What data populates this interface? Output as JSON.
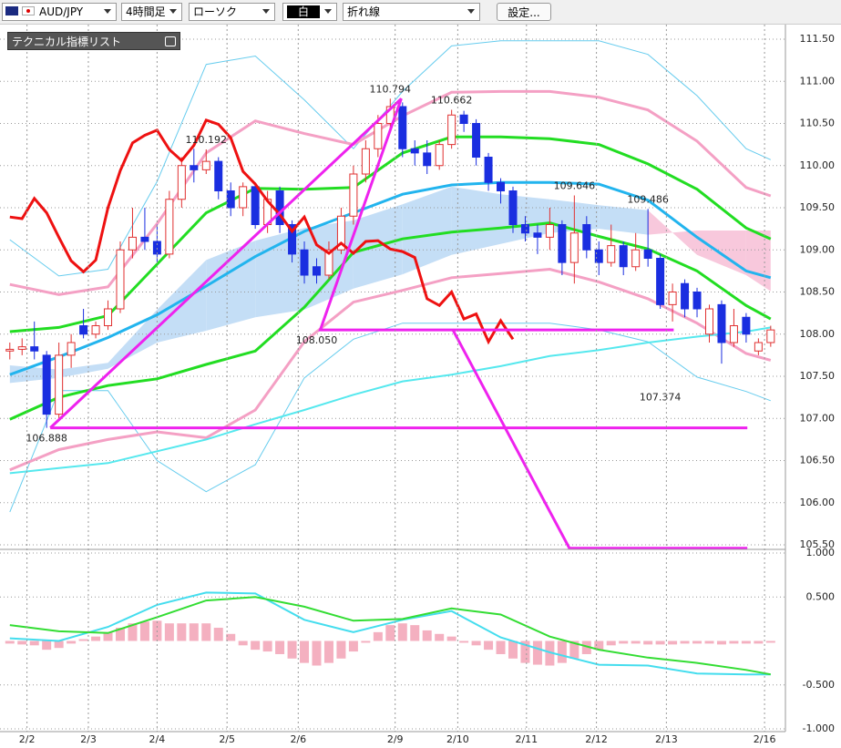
{
  "toolbar": {
    "symbol": "AUD/JPY",
    "timeframe": "4時間足",
    "chart_style": "ローソク",
    "color": "白",
    "line_type": "折れ線",
    "settings_button": "設定..."
  },
  "indicator_panel": {
    "title": "テクニカル指標リスト"
  },
  "chart_data": [
    {
      "type": "candlestick",
      "xlim": [
        -0.8,
        63.2
      ],
      "ylim": [
        105.5,
        111.5
      ],
      "yticks": [
        {
          "value": 111.5,
          "label": "111.50"
        },
        {
          "value": 111,
          "label": "111.00"
        },
        {
          "value": 110.5,
          "label": "110.50"
        },
        {
          "value": 110,
          "label": "110.00"
        },
        {
          "value": 109.5,
          "label": "109.50"
        },
        {
          "value": 109,
          "label": "109.00"
        },
        {
          "value": 108.5,
          "label": "108.50"
        },
        {
          "value": 108,
          "label": "108.00"
        },
        {
          "value": 107.5,
          "label": "107.50"
        },
        {
          "value": 107,
          "label": "107.00"
        },
        {
          "value": 106.5,
          "label": "106.50"
        },
        {
          "value": 106,
          "label": "106.00"
        },
        {
          "value": 105.5,
          "label": "105.50"
        }
      ],
      "grid": true,
      "up_color": "#e03030",
      "down_color": "#1a2ee0",
      "candles": {
        "open": [
          107.8,
          107.82,
          107.85,
          107.75,
          107.05,
          107.75,
          108.1,
          108.0,
          108.1,
          108.3,
          109.0,
          109.15,
          109.1,
          108.95,
          109.6,
          110.0,
          109.95,
          110.05,
          109.7,
          109.5,
          109.75,
          109.3,
          109.7,
          109.3,
          109.0,
          108.8,
          108.7,
          109.0,
          109.4,
          109.9,
          110.2,
          110.5,
          110.7,
          110.2,
          110.15,
          110.0,
          110.25,
          110.6,
          110.5,
          110.1,
          109.8,
          109.7,
          109.3,
          109.2,
          109.15,
          109.3,
          108.85,
          109.3,
          109.0,
          108.85,
          109.05,
          108.8,
          109.0,
          108.9,
          108.35,
          108.6,
          108.5,
          108.0,
          108.35,
          107.9,
          108.2,
          107.8,
          107.9
        ],
        "high": [
          107.9,
          107.95,
          108.15,
          107.8,
          107.9,
          108.0,
          108.3,
          108.15,
          108.4,
          109.1,
          109.5,
          109.5,
          109.3,
          109.7,
          110.1,
          110.2,
          110.192,
          110.1,
          109.8,
          109.8,
          109.8,
          109.7,
          109.75,
          109.35,
          109.1,
          108.9,
          109.1,
          109.5,
          110.0,
          110.3,
          110.6,
          110.794,
          110.75,
          110.3,
          110.3,
          110.3,
          110.662,
          110.65,
          110.55,
          110.15,
          109.85,
          109.75,
          109.4,
          109.3,
          109.5,
          109.35,
          109.646,
          109.4,
          109.1,
          109.3,
          109.1,
          109.2,
          109.486,
          108.95,
          108.6,
          108.65,
          108.55,
          108.35,
          108.4,
          108.3,
          108.25,
          107.95,
          108.1
        ],
        "low": [
          107.7,
          107.75,
          107.7,
          106.888,
          107.0,
          107.6,
          107.95,
          107.95,
          108.05,
          108.25,
          108.9,
          109.0,
          108.85,
          108.9,
          109.5,
          109.8,
          109.9,
          109.6,
          109.4,
          109.4,
          109.25,
          109.2,
          109.2,
          108.85,
          108.6,
          108.6,
          108.65,
          108.95,
          109.3,
          109.8,
          110.1,
          110.4,
          110.1,
          110.0,
          109.9,
          109.95,
          110.2,
          110.4,
          110.0,
          109.7,
          109.55,
          109.2,
          109.1,
          108.95,
          109.0,
          108.7,
          108.6,
          108.9,
          108.7,
          108.8,
          108.7,
          108.75,
          108.8,
          108.3,
          108.15,
          108.2,
          108.2,
          107.9,
          107.65,
          107.85,
          107.9,
          107.75,
          107.85
        ],
        "close": [
          107.82,
          107.85,
          107.8,
          107.05,
          107.75,
          107.9,
          108.0,
          108.1,
          108.3,
          109.0,
          109.15,
          109.1,
          108.95,
          109.6,
          110.0,
          109.95,
          110.05,
          109.7,
          109.5,
          109.75,
          109.3,
          109.6,
          109.3,
          108.95,
          108.7,
          108.7,
          109.0,
          109.4,
          109.9,
          110.2,
          110.5,
          110.7,
          110.2,
          110.15,
          110.0,
          110.25,
          110.6,
          110.5,
          110.1,
          109.8,
          109.7,
          109.3,
          109.2,
          109.15,
          109.3,
          108.85,
          109.2,
          109.0,
          108.85,
          109.05,
          108.8,
          109.0,
          108.9,
          108.35,
          108.5,
          108.3,
          108.3,
          108.3,
          107.9,
          108.1,
          108.0,
          107.9,
          108.05
        ]
      },
      "cloud": {
        "up_color": "#c4def6",
        "down_color": "#f8c8dc",
        "span_a": [
          107.63,
          107.58,
          107.66,
          108.29,
          108.88,
          109.11,
          109.26,
          109.35,
          109.54,
          109.75,
          109.66,
          109.6,
          109.53,
          109.47,
          108.94,
          108.7,
          108.51
        ],
        "span_b": [
          107.42,
          107.48,
          107.59,
          107.9,
          108.04,
          108.2,
          108.29,
          108.54,
          108.71,
          108.94,
          109.07,
          109.2,
          109.25,
          109.18,
          109.23,
          109.23,
          109.23
        ]
      },
      "indicators": {
        "x": [
          0,
          4,
          8,
          12,
          16,
          20,
          24,
          28,
          32,
          36,
          40,
          44,
          48,
          52,
          56,
          60,
          62
        ],
        "series": [
          {
            "color": "#66ccee",
            "line_width": 1,
            "values": [
              109.12,
              108.69,
              108.77,
              109.81,
              111.2,
              111.3,
              110.78,
              110.2,
              110.88,
              111.42,
              111.48,
              111.48,
              111.48,
              111.32,
              110.83,
              110.2,
              110.07
            ]
          },
          {
            "color": "#66ccee",
            "line_width": 1,
            "values": [
              105.89,
              107.33,
              107.33,
              106.5,
              106.13,
              106.45,
              107.48,
              107.94,
              108.13,
              108.13,
              108.13,
              108.13,
              108.05,
              107.91,
              107.49,
              107.32,
              107.21
            ]
          },
          {
            "color": "#f4a0c4",
            "line_width": 3,
            "values": [
              108.59,
              108.47,
              108.56,
              109.31,
              110.15,
              110.53,
              110.38,
              110.25,
              110.59,
              110.87,
              110.88,
              110.88,
              110.81,
              110.66,
              110.29,
              109.74,
              109.64
            ]
          },
          {
            "color": "#f4a0c4",
            "line_width": 3,
            "values": [
              106.39,
              106.63,
              106.75,
              106.84,
              106.77,
              107.1,
              107.91,
              108.38,
              108.52,
              108.67,
              108.72,
              108.77,
              108.62,
              108.42,
              108.13,
              107.77,
              107.69
            ]
          },
          {
            "color": "#55e8ee",
            "line_width": 2,
            "values": [
              106.35,
              106.41,
              106.47,
              106.61,
              106.75,
              106.93,
              107.1,
              107.28,
              107.44,
              107.52,
              107.62,
              107.74,
              107.81,
              107.9,
              107.97,
              108.03,
              108.08
            ]
          },
          {
            "color": "#22dd22",
            "line_width": 3,
            "values": [
              108.03,
              108.08,
              108.22,
              108.83,
              109.44,
              109.73,
              109.72,
              109.74,
              110.15,
              110.34,
              110.34,
              110.32,
              110.25,
              110.02,
              109.72,
              109.26,
              109.13
            ]
          },
          {
            "color": "#22dd22",
            "line_width": 3,
            "values": [
              106.99,
              107.25,
              107.39,
              107.47,
              107.64,
              107.8,
              108.32,
              108.97,
              109.13,
              109.21,
              109.26,
              109.32,
              109.16,
              109.01,
              108.75,
              108.34,
              108.18
            ]
          },
          {
            "color": "#22b4ee",
            "line_width": 3,
            "values": [
              107.52,
              107.73,
              107.96,
              108.23,
              108.57,
              108.92,
              109.22,
              109.44,
              109.66,
              109.77,
              109.8,
              109.8,
              109.78,
              109.59,
              109.15,
              108.75,
              108.67
            ]
          }
        ]
      },
      "lagging_line": {
        "color": "#ee1111",
        "x": [
          0,
          1,
          2,
          3,
          4,
          5,
          6,
          7,
          8,
          9,
          10,
          11,
          12,
          13,
          14,
          15,
          16,
          17,
          18,
          19,
          20,
          21,
          22,
          23,
          24,
          25,
          26,
          27,
          28,
          29,
          30,
          31,
          32,
          33,
          34,
          35,
          36,
          37,
          38,
          39,
          40,
          41
        ],
        "values": [
          109.39,
          109.37,
          109.61,
          109.44,
          109.15,
          108.87,
          108.74,
          108.88,
          109.5,
          109.94,
          110.27,
          110.36,
          110.42,
          110.19,
          110.06,
          110.24,
          110.54,
          110.49,
          110.33,
          109.93,
          109.78,
          109.58,
          109.42,
          109.22,
          109.39,
          109.06,
          108.96,
          109.08,
          108.96,
          109.1,
          109.11,
          109.01,
          108.98,
          108.91,
          108.42,
          108.34,
          108.5,
          108.18,
          108.24,
          107.91,
          108.16,
          107.94
        ]
      },
      "drawing_color": "#ee22ee",
      "drawings": [
        {
          "x": [
            3.3,
            31.9,
            25.3,
            54.1
          ],
          "values": [
            106.888,
            110.794,
            108.05,
            108.05
          ]
        },
        {
          "x": [
            3.3,
            60.1
          ],
          "values": [
            106.888,
            106.888
          ]
        },
        {
          "x": [
            36.1,
            45.6,
            60.1
          ],
          "values": [
            108.05,
            105.46,
            105.46
          ]
        }
      ],
      "annotations": {
        "x": [
          16,
          31,
          36,
          46,
          52,
          53,
          25,
          3
        ],
        "values": [
          110.192,
          110.794,
          110.662,
          109.646,
          109.486,
          107.374,
          108.05,
          106.888
        ],
        "value_labels": [
          "110.192",
          "110.794",
          "110.662",
          "109.646",
          "109.486",
          "107.374",
          "108.050",
          "106.888"
        ]
      }
    },
    {
      "type": "macd",
      "xlim": [
        -0.8,
        63.2
      ],
      "ylim": [
        -1,
        1
      ],
      "yticks": [
        {
          "value": 1,
          "label": "1.000"
        },
        {
          "value": 0.5,
          "label": "0.500"
        },
        {
          "value": -0.5,
          "label": "-0.500"
        },
        {
          "value": -1,
          "label": "-1.000"
        }
      ],
      "xticks": [
        {
          "value": 1.4,
          "label": "2/2"
        },
        {
          "value": 6.4,
          "label": "2/3"
        },
        {
          "value": 12.0,
          "label": "2/4"
        },
        {
          "value": 17.7,
          "label": "2/5"
        },
        {
          "value": 23.5,
          "label": "2/6"
        },
        {
          "value": 31.4,
          "label": "2/9"
        },
        {
          "value": 36.5,
          "label": "2/10"
        },
        {
          "value": 42.1,
          "label": "2/11"
        },
        {
          "value": 47.8,
          "label": "2/12"
        },
        {
          "value": 53.5,
          "label": "2/13"
        },
        {
          "value": 61.5,
          "label": "2/16"
        }
      ],
      "histogram": {
        "color": "#f4b0c0",
        "values": [
          -0.03,
          -0.04,
          -0.05,
          -0.1,
          -0.08,
          -0.03,
          0.02,
          0.05,
          0.1,
          0.15,
          0.2,
          0.22,
          0.23,
          0.2,
          0.2,
          0.2,
          0.2,
          0.15,
          0.08,
          -0.05,
          -0.1,
          -0.12,
          -0.15,
          -0.2,
          -0.25,
          -0.28,
          -0.25,
          -0.2,
          -0.12,
          -0.02,
          0.1,
          0.18,
          0.2,
          0.18,
          0.12,
          0.08,
          0.05,
          -0.02,
          -0.05,
          -0.1,
          -0.15,
          -0.2,
          -0.25,
          -0.27,
          -0.28,
          -0.25,
          -0.2,
          -0.15,
          -0.1,
          -0.05,
          -0.03,
          -0.03,
          -0.04,
          -0.04,
          -0.04,
          -0.03,
          -0.03,
          -0.03,
          -0.04,
          -0.03,
          -0.03,
          -0.03,
          -0.02
        ]
      },
      "x": [
        0,
        4,
        8,
        12,
        16,
        20,
        24,
        28,
        32,
        36,
        40,
        44,
        48,
        52,
        56,
        60,
        62
      ],
      "series": [
        {
          "color": "#44ddee",
          "values": [
            0.03,
            0,
            0.16,
            0.41,
            0.55,
            0.54,
            0.24,
            0.1,
            0.24,
            0.34,
            0.04,
            -0.13,
            -0.27,
            -0.28,
            -0.37,
            -0.38,
            -0.38
          ]
        },
        {
          "color": "#33dd33",
          "values": [
            0.18,
            0.11,
            0.09,
            0.27,
            0.46,
            0.5,
            0.39,
            0.23,
            0.25,
            0.37,
            0.3,
            0.05,
            -0.1,
            -0.19,
            -0.25,
            -0.33,
            -0.38
          ]
        }
      ]
    }
  ]
}
